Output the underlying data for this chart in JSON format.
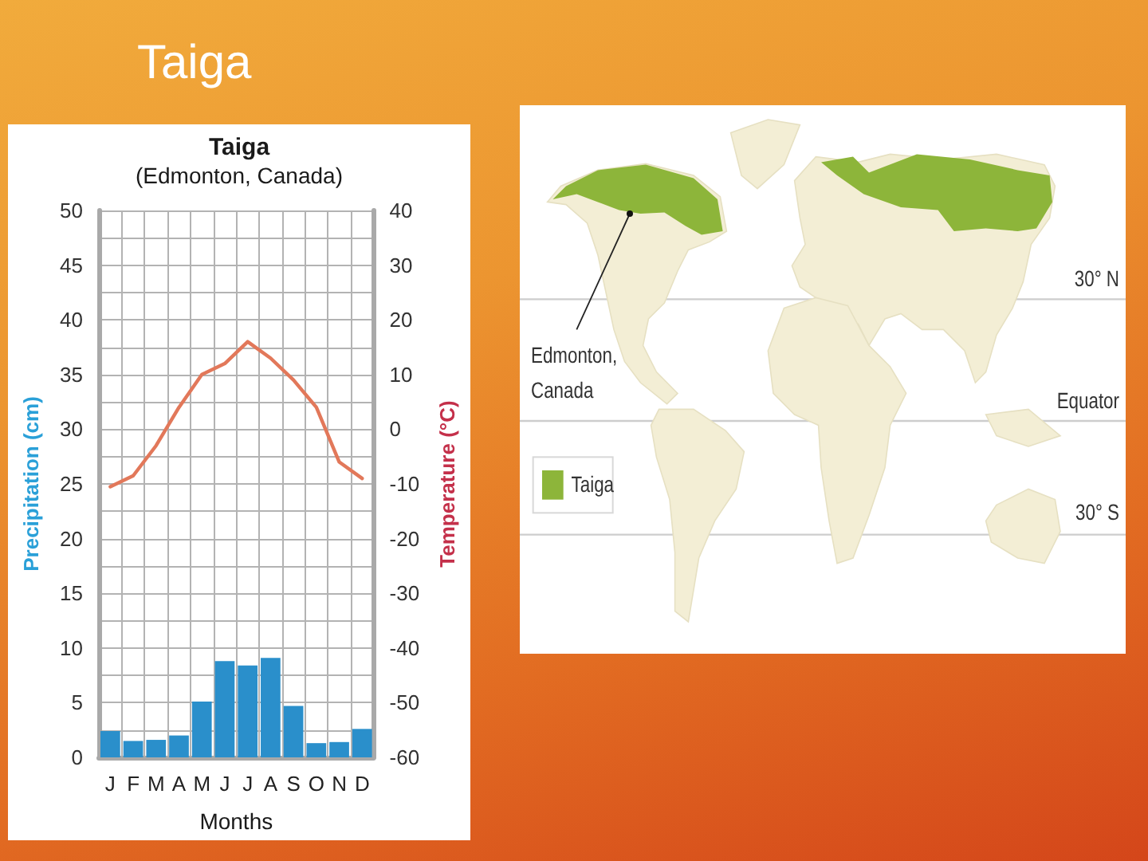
{
  "chart_data": [
    {
      "type": "bar",
      "title": "Taiga",
      "subtitle": "(Edmonton, Canada)",
      "xlabel": "Months",
      "ylabel": "Precipitation (cm)",
      "y2label": "Temperature (°C)",
      "categories": [
        "J",
        "F",
        "M",
        "A",
        "M",
        "J",
        "J",
        "A",
        "S",
        "O",
        "N",
        "D"
      ],
      "series": [
        {
          "type": "bar",
          "color": "#2a8fcb",
          "values": [
            2.4,
            1.5,
            1.6,
            2.0,
            5.1,
            8.8,
            8.4,
            9.1,
            4.7,
            1.3,
            1.4,
            2.6
          ]
        },
        {
          "type": "line",
          "axis": "y2",
          "color": "#e2785a",
          "values": [
            -10.5,
            -8.5,
            -3,
            4,
            10,
            12,
            16,
            13,
            9,
            4,
            -6,
            -9
          ]
        }
      ],
      "ylim": [
        0,
        50
      ],
      "yticks": [
        0,
        {
          "value": 2.5,
          "label": null
        },
        5,
        {
          "value": 7.5,
          "label": null
        },
        10,
        {
          "value": 12.5,
          "label": null
        },
        15,
        {
          "value": 17.5,
          "label": null
        },
        20,
        {
          "value": 22.5,
          "label": null
        },
        25,
        {
          "value": 27.5,
          "label": null
        },
        30,
        {
          "value": 32.5,
          "label": null
        },
        35,
        {
          "value": 37.5,
          "label": null
        },
        40,
        {
          "value": 42.5,
          "label": null
        },
        45,
        {
          "value": 47.5,
          "label": null
        },
        50
      ],
      "y2lim": [
        -60,
        40
      ],
      "y2ticks": [
        -60,
        -50,
        -40,
        -30,
        -20,
        -10,
        0,
        10,
        20,
        30,
        40
      ],
      "grid": true,
      "marker": "none",
      "line_style": "solid"
    },
    {
      "type": "other",
      "title": "Taiga",
      "annotations": [
        "Edmonton, Canada",
        "30° N",
        "Equator",
        "30° S",
        "Taiga"
      ]
    }
  ]
}
